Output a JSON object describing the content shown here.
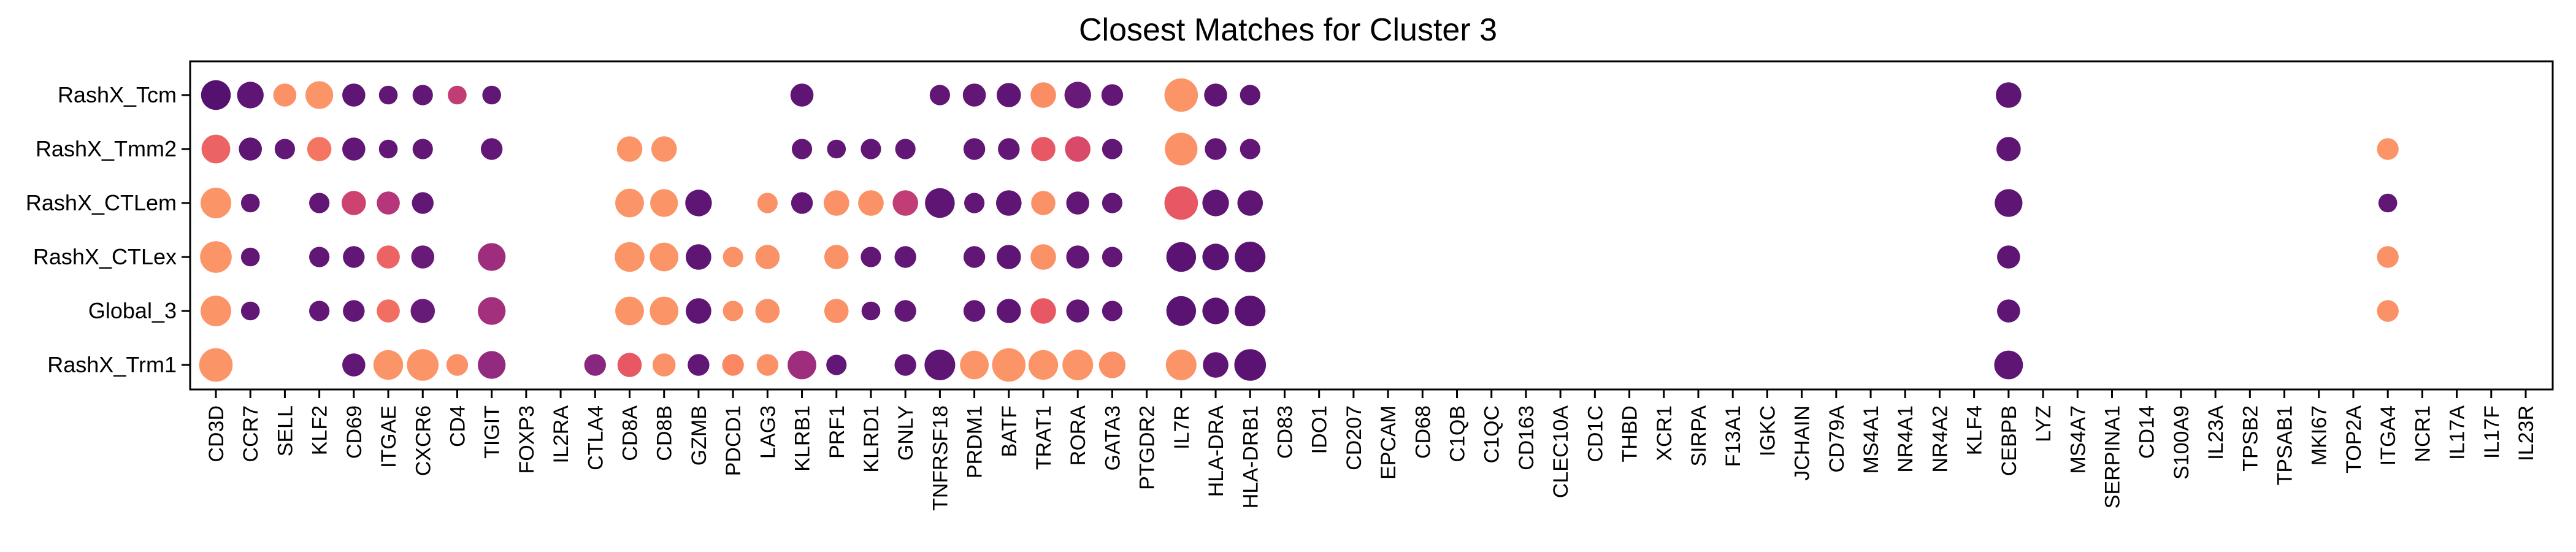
{
  "chart_data": {
    "type": "dot",
    "title": "Closest Matches for Cluster 3",
    "xlabel": "",
    "ylabel": "",
    "grid": false,
    "legend": "none",
    "rows": [
      "RashX_Tcm",
      "RashX_Tmm2",
      "RashX_CTLem",
      "RashX_CTLex",
      "Global_3",
      "RashX_Trm1"
    ],
    "genes": [
      "CD3D",
      "CCR7",
      "SELL",
      "KLF2",
      "CD69",
      "ITGAE",
      "CXCR6",
      "CD4",
      "TIGIT",
      "FOXP3",
      "IL2RA",
      "CTLA4",
      "CD8A",
      "CD8B",
      "GZMB",
      "PDCD1",
      "LAG3",
      "KLRB1",
      "PRF1",
      "KLRD1",
      "GNLY",
      "TNFRSF18",
      "PRDM1",
      "BATF",
      "TRAT1",
      "RORA",
      "GATA3",
      "PTGDR2",
      "IL7R",
      "HLA-DRA",
      "HLA-DRB1",
      "CD83",
      "IDO1",
      "CD207",
      "EPCAM",
      "CD68",
      "C1QB",
      "C1QC",
      "CD163",
      "CLEC10A",
      "CD1C",
      "THBD",
      "XCR1",
      "SIRPA",
      "F13A1",
      "IGKC",
      "JCHAIN",
      "CD79A",
      "MS4A1",
      "NR4A1",
      "NR4A2",
      "KLF4",
      "CEBPB",
      "LYZ",
      "MS4A7",
      "SERPINA1",
      "CD14",
      "S100A9",
      "IL23A",
      "TPSB2",
      "TPSAB1",
      "MKI67",
      "TOP2A",
      "ITGA4",
      "NCR1",
      "IL17A",
      "IL17F",
      "IL23R"
    ],
    "size_scale": "relative dot size 0-1",
    "color_scale": "0 = dark purple, 1 = light orange",
    "points": [
      {
        "row": "RashX_Tcm",
        "gene": "CD3D",
        "size": 0.75,
        "color": 0.05
      },
      {
        "row": "RashX_Tcm",
        "gene": "CCR7",
        "size": 0.6,
        "color": 0.1
      },
      {
        "row": "RashX_Tcm",
        "gene": "SELL",
        "size": 0.45,
        "color": 0.9
      },
      {
        "row": "RashX_Tcm",
        "gene": "KLF2",
        "size": 0.65,
        "color": 0.92
      },
      {
        "row": "RashX_Tcm",
        "gene": "CD69",
        "size": 0.45,
        "color": 0.1
      },
      {
        "row": "RashX_Tcm",
        "gene": "ITGAE",
        "size": 0.3,
        "color": 0.12
      },
      {
        "row": "RashX_Tcm",
        "gene": "CXCR6",
        "size": 0.35,
        "color": 0.12
      },
      {
        "row": "RashX_Tcm",
        "gene": "CD4",
        "size": 0.3,
        "color": 0.55
      },
      {
        "row": "RashX_Tcm",
        "gene": "TIGIT",
        "size": 0.3,
        "color": 0.12
      },
      {
        "row": "RashX_Tcm",
        "gene": "KLRB1",
        "size": 0.45,
        "color": 0.1
      },
      {
        "row": "RashX_Tcm",
        "gene": "TNFRSF18",
        "size": 0.35,
        "color": 0.12
      },
      {
        "row": "RashX_Tcm",
        "gene": "PRDM1",
        "size": 0.45,
        "color": 0.12
      },
      {
        "row": "RashX_Tcm",
        "gene": "BATF",
        "size": 0.5,
        "color": 0.1
      },
      {
        "row": "RashX_Tcm",
        "gene": "TRAT1",
        "size": 0.55,
        "color": 0.88
      },
      {
        "row": "RashX_Tcm",
        "gene": "RORA",
        "size": 0.6,
        "color": 0.15
      },
      {
        "row": "RashX_Tcm",
        "gene": "GATA3",
        "size": 0.4,
        "color": 0.12
      },
      {
        "row": "RashX_Tcm",
        "gene": "IL7R",
        "size": 0.95,
        "color": 0.92
      },
      {
        "row": "RashX_Tcm",
        "gene": "HLA-DRA",
        "size": 0.45,
        "color": 0.1
      },
      {
        "row": "RashX_Tcm",
        "gene": "HLA-DRB1",
        "size": 0.35,
        "color": 0.1
      },
      {
        "row": "RashX_Tcm",
        "gene": "CEBPB",
        "size": 0.55,
        "color": 0.1
      },
      {
        "row": "RashX_Tmm2",
        "gene": "CD3D",
        "size": 0.7,
        "color": 0.75
      },
      {
        "row": "RashX_Tmm2",
        "gene": "CCR7",
        "size": 0.45,
        "color": 0.1
      },
      {
        "row": "RashX_Tmm2",
        "gene": "SELL",
        "size": 0.35,
        "color": 0.12
      },
      {
        "row": "RashX_Tmm2",
        "gene": "KLF2",
        "size": 0.5,
        "color": 0.8
      },
      {
        "row": "RashX_Tmm2",
        "gene": "CD69",
        "size": 0.45,
        "color": 0.12
      },
      {
        "row": "RashX_Tmm2",
        "gene": "ITGAE",
        "size": 0.3,
        "color": 0.12
      },
      {
        "row": "RashX_Tmm2",
        "gene": "CXCR6",
        "size": 0.35,
        "color": 0.12
      },
      {
        "row": "RashX_Tmm2",
        "gene": "TIGIT",
        "size": 0.4,
        "color": 0.12
      },
      {
        "row": "RashX_Tmm2",
        "gene": "CD8A",
        "size": 0.55,
        "color": 0.92
      },
      {
        "row": "RashX_Tmm2",
        "gene": "CD8B",
        "size": 0.55,
        "color": 0.92
      },
      {
        "row": "RashX_Tmm2",
        "gene": "KLRB1",
        "size": 0.35,
        "color": 0.12
      },
      {
        "row": "RashX_Tmm2",
        "gene": "PRF1",
        "size": 0.3,
        "color": 0.12
      },
      {
        "row": "RashX_Tmm2",
        "gene": "KLRD1",
        "size": 0.35,
        "color": 0.12
      },
      {
        "row": "RashX_Tmm2",
        "gene": "GNLY",
        "size": 0.35,
        "color": 0.12
      },
      {
        "row": "RashX_Tmm2",
        "gene": "PRDM1",
        "size": 0.4,
        "color": 0.12
      },
      {
        "row": "RashX_Tmm2",
        "gene": "BATF",
        "size": 0.4,
        "color": 0.12
      },
      {
        "row": "RashX_Tmm2",
        "gene": "TRAT1",
        "size": 0.5,
        "color": 0.72
      },
      {
        "row": "RashX_Tmm2",
        "gene": "RORA",
        "size": 0.55,
        "color": 0.65
      },
      {
        "row": "RashX_Tmm2",
        "gene": "GATA3",
        "size": 0.35,
        "color": 0.12
      },
      {
        "row": "RashX_Tmm2",
        "gene": "IL7R",
        "size": 0.9,
        "color": 0.9
      },
      {
        "row": "RashX_Tmm2",
        "gene": "HLA-DRA",
        "size": 0.4,
        "color": 0.12
      },
      {
        "row": "RashX_Tmm2",
        "gene": "HLA-DRB1",
        "size": 0.35,
        "color": 0.12
      },
      {
        "row": "RashX_Tmm2",
        "gene": "CEBPB",
        "size": 0.5,
        "color": 0.1
      },
      {
        "row": "RashX_Tmm2",
        "gene": "ITGA4",
        "size": 0.4,
        "color": 0.92
      },
      {
        "row": "RashX_CTLem",
        "gene": "CD3D",
        "size": 0.8,
        "color": 0.92
      },
      {
        "row": "RashX_CTLem",
        "gene": "CCR7",
        "size": 0.3,
        "color": 0.12
      },
      {
        "row": "RashX_CTLem",
        "gene": "KLF2",
        "size": 0.35,
        "color": 0.12
      },
      {
        "row": "RashX_CTLem",
        "gene": "CD69",
        "size": 0.5,
        "color": 0.6
      },
      {
        "row": "RashX_CTLem",
        "gene": "ITGAE",
        "size": 0.45,
        "color": 0.5
      },
      {
        "row": "RashX_CTLem",
        "gene": "CXCR6",
        "size": 0.4,
        "color": 0.12
      },
      {
        "row": "RashX_CTLem",
        "gene": "CD8A",
        "size": 0.7,
        "color": 0.92
      },
      {
        "row": "RashX_CTLem",
        "gene": "CD8B",
        "size": 0.65,
        "color": 0.92
      },
      {
        "row": "RashX_CTLem",
        "gene": "GZMB",
        "size": 0.6,
        "color": 0.1
      },
      {
        "row": "RashX_CTLem",
        "gene": "LAG3",
        "size": 0.35,
        "color": 0.9
      },
      {
        "row": "RashX_CTLem",
        "gene": "KLRB1",
        "size": 0.4,
        "color": 0.12
      },
      {
        "row": "RashX_CTLem",
        "gene": "PRF1",
        "size": 0.55,
        "color": 0.9
      },
      {
        "row": "RashX_CTLem",
        "gene": "KLRD1",
        "size": 0.55,
        "color": 0.9
      },
      {
        "row": "RashX_CTLem",
        "gene": "GNLY",
        "size": 0.55,
        "color": 0.55
      },
      {
        "row": "RashX_CTLem",
        "gene": "TNFRSF18",
        "size": 0.75,
        "color": 0.1
      },
      {
        "row": "RashX_CTLem",
        "gene": "PRDM1",
        "size": 0.35,
        "color": 0.12
      },
      {
        "row": "RashX_CTLem",
        "gene": "BATF",
        "size": 0.55,
        "color": 0.1
      },
      {
        "row": "RashX_CTLem",
        "gene": "TRAT1",
        "size": 0.5,
        "color": 0.9
      },
      {
        "row": "RashX_CTLem",
        "gene": "RORA",
        "size": 0.45,
        "color": 0.12
      },
      {
        "row": "RashX_CTLem",
        "gene": "GATA3",
        "size": 0.35,
        "color": 0.12
      },
      {
        "row": "RashX_CTLem",
        "gene": "IL7R",
        "size": 0.95,
        "color": 0.72
      },
      {
        "row": "RashX_CTLem",
        "gene": "HLA-DRA",
        "size": 0.6,
        "color": 0.1
      },
      {
        "row": "RashX_CTLem",
        "gene": "HLA-DRB1",
        "size": 0.55,
        "color": 0.1
      },
      {
        "row": "RashX_CTLem",
        "gene": "CEBPB",
        "size": 0.65,
        "color": 0.1
      },
      {
        "row": "RashX_CTLem",
        "gene": "ITGA4",
        "size": 0.3,
        "color": 0.12
      },
      {
        "row": "RashX_CTLex",
        "gene": "CD3D",
        "size": 0.85,
        "color": 0.92
      },
      {
        "row": "RashX_CTLex",
        "gene": "CCR7",
        "size": 0.3,
        "color": 0.12
      },
      {
        "row": "RashX_CTLex",
        "gene": "CD69",
        "size": 0.4,
        "color": 0.12
      },
      {
        "row": "RashX_CTLex",
        "gene": "KLF2",
        "size": 0.35,
        "color": 0.12
      },
      {
        "row": "RashX_CTLex",
        "gene": "ITGAE",
        "size": 0.45,
        "color": 0.75
      },
      {
        "row": "RashX_CTLex",
        "gene": "CXCR6",
        "size": 0.45,
        "color": 0.15
      },
      {
        "row": "RashX_CTLex",
        "gene": "TIGIT",
        "size": 0.65,
        "color": 0.4
      },
      {
        "row": "RashX_CTLex",
        "gene": "CD8A",
        "size": 0.75,
        "color": 0.92
      },
      {
        "row": "RashX_CTLex",
        "gene": "CD8B",
        "size": 0.7,
        "color": 0.92
      },
      {
        "row": "RashX_CTLex",
        "gene": "GZMB",
        "size": 0.55,
        "color": 0.1
      },
      {
        "row": "RashX_CTLex",
        "gene": "PDCD1",
        "size": 0.35,
        "color": 0.9
      },
      {
        "row": "RashX_CTLex",
        "gene": "LAG3",
        "size": 0.5,
        "color": 0.9
      },
      {
        "row": "RashX_CTLex",
        "gene": "PRF1",
        "size": 0.5,
        "color": 0.9
      },
      {
        "row": "RashX_CTLex",
        "gene": "KLRD1",
        "size": 0.35,
        "color": 0.12
      },
      {
        "row": "RashX_CTLex",
        "gene": "GNLY",
        "size": 0.4,
        "color": 0.12
      },
      {
        "row": "RashX_CTLex",
        "gene": "PRDM1",
        "size": 0.4,
        "color": 0.12
      },
      {
        "row": "RashX_CTLex",
        "gene": "BATF",
        "size": 0.5,
        "color": 0.1
      },
      {
        "row": "RashX_CTLex",
        "gene": "TRAT1",
        "size": 0.55,
        "color": 0.9
      },
      {
        "row": "RashX_CTLex",
        "gene": "RORA",
        "size": 0.45,
        "color": 0.12
      },
      {
        "row": "RashX_CTLex",
        "gene": "GATA3",
        "size": 0.35,
        "color": 0.12
      },
      {
        "row": "RashX_CTLex",
        "gene": "IL7R",
        "size": 0.75,
        "color": 0.08
      },
      {
        "row": "RashX_CTLex",
        "gene": "HLA-DRA",
        "size": 0.6,
        "color": 0.08
      },
      {
        "row": "RashX_CTLex",
        "gene": "HLA-DRB1",
        "size": 0.8,
        "color": 0.08
      },
      {
        "row": "RashX_CTLex",
        "gene": "CEBPB",
        "size": 0.45,
        "color": 0.1
      },
      {
        "row": "RashX_CTLex",
        "gene": "ITGA4",
        "size": 0.4,
        "color": 0.9
      },
      {
        "row": "Global_3",
        "gene": "CD3D",
        "size": 0.8,
        "color": 0.92
      },
      {
        "row": "Global_3",
        "gene": "CCR7",
        "size": 0.3,
        "color": 0.12
      },
      {
        "row": "Global_3",
        "gene": "KLF2",
        "size": 0.35,
        "color": 0.12
      },
      {
        "row": "Global_3",
        "gene": "CD69",
        "size": 0.4,
        "color": 0.12
      },
      {
        "row": "Global_3",
        "gene": "ITGAE",
        "size": 0.45,
        "color": 0.78
      },
      {
        "row": "Global_3",
        "gene": "CXCR6",
        "size": 0.5,
        "color": 0.15
      },
      {
        "row": "Global_3",
        "gene": "TIGIT",
        "size": 0.65,
        "color": 0.42
      },
      {
        "row": "Global_3",
        "gene": "CD8A",
        "size": 0.7,
        "color": 0.92
      },
      {
        "row": "Global_3",
        "gene": "CD8B",
        "size": 0.7,
        "color": 0.92
      },
      {
        "row": "Global_3",
        "gene": "GZMB",
        "size": 0.55,
        "color": 0.1
      },
      {
        "row": "Global_3",
        "gene": "PDCD1",
        "size": 0.35,
        "color": 0.9
      },
      {
        "row": "Global_3",
        "gene": "LAG3",
        "size": 0.5,
        "color": 0.9
      },
      {
        "row": "Global_3",
        "gene": "PRF1",
        "size": 0.5,
        "color": 0.9
      },
      {
        "row": "Global_3",
        "gene": "KLRD1",
        "size": 0.3,
        "color": 0.12
      },
      {
        "row": "Global_3",
        "gene": "GNLY",
        "size": 0.4,
        "color": 0.12
      },
      {
        "row": "Global_3",
        "gene": "PRDM1",
        "size": 0.4,
        "color": 0.12
      },
      {
        "row": "Global_3",
        "gene": "BATF",
        "size": 0.5,
        "color": 0.1
      },
      {
        "row": "Global_3",
        "gene": "TRAT1",
        "size": 0.55,
        "color": 0.72
      },
      {
        "row": "Global_3",
        "gene": "RORA",
        "size": 0.45,
        "color": 0.12
      },
      {
        "row": "Global_3",
        "gene": "GATA3",
        "size": 0.35,
        "color": 0.12
      },
      {
        "row": "Global_3",
        "gene": "IL7R",
        "size": 0.75,
        "color": 0.08
      },
      {
        "row": "Global_3",
        "gene": "HLA-DRA",
        "size": 0.6,
        "color": 0.08
      },
      {
        "row": "Global_3",
        "gene": "HLA-DRB1",
        "size": 0.8,
        "color": 0.08
      },
      {
        "row": "Global_3",
        "gene": "CEBPB",
        "size": 0.45,
        "color": 0.1
      },
      {
        "row": "Global_3",
        "gene": "ITGA4",
        "size": 0.4,
        "color": 0.9
      },
      {
        "row": "RashX_Trm1",
        "gene": "CD3D",
        "size": 0.95,
        "color": 0.92
      },
      {
        "row": "RashX_Trm1",
        "gene": "CD69",
        "size": 0.45,
        "color": 0.12
      },
      {
        "row": "RashX_Trm1",
        "gene": "ITGAE",
        "size": 0.75,
        "color": 0.92
      },
      {
        "row": "RashX_Trm1",
        "gene": "CXCR6",
        "size": 0.85,
        "color": 0.92
      },
      {
        "row": "RashX_Trm1",
        "gene": "CD4",
        "size": 0.4,
        "color": 0.9
      },
      {
        "row": "RashX_Trm1",
        "gene": "TIGIT",
        "size": 0.65,
        "color": 0.35
      },
      {
        "row": "RashX_Trm1",
        "gene": "CTLA4",
        "size": 0.4,
        "color": 0.3
      },
      {
        "row": "RashX_Trm1",
        "gene": "CD8A",
        "size": 0.5,
        "color": 0.72
      },
      {
        "row": "RashX_Trm1",
        "gene": "CD8B",
        "size": 0.45,
        "color": 0.9
      },
      {
        "row": "RashX_Trm1",
        "gene": "GZMB",
        "size": 0.4,
        "color": 0.12
      },
      {
        "row": "RashX_Trm1",
        "gene": "PDCD1",
        "size": 0.4,
        "color": 0.85
      },
      {
        "row": "RashX_Trm1",
        "gene": "LAG3",
        "size": 0.4,
        "color": 0.9
      },
      {
        "row": "RashX_Trm1",
        "gene": "KLRB1",
        "size": 0.7,
        "color": 0.4
      },
      {
        "row": "RashX_Trm1",
        "gene": "PRF1",
        "size": 0.35,
        "color": 0.12
      },
      {
        "row": "RashX_Trm1",
        "gene": "GNLY",
        "size": 0.4,
        "color": 0.12
      },
      {
        "row": "RashX_Trm1",
        "gene": "TNFRSF18",
        "size": 0.8,
        "color": 0.1
      },
      {
        "row": "RashX_Trm1",
        "gene": "PRDM1",
        "size": 0.7,
        "color": 0.92
      },
      {
        "row": "RashX_Trm1",
        "gene": "BATF",
        "size": 0.95,
        "color": 0.92
      },
      {
        "row": "RashX_Trm1",
        "gene": "TRAT1",
        "size": 0.75,
        "color": 0.92
      },
      {
        "row": "RashX_Trm1",
        "gene": "RORA",
        "size": 0.8,
        "color": 0.92
      },
      {
        "row": "RashX_Trm1",
        "gene": "GATA3",
        "size": 0.6,
        "color": 0.9
      },
      {
        "row": "RashX_Trm1",
        "gene": "IL7R",
        "size": 0.8,
        "color": 0.92
      },
      {
        "row": "RashX_Trm1",
        "gene": "HLA-DRA",
        "size": 0.55,
        "color": 0.1
      },
      {
        "row": "RashX_Trm1",
        "gene": "HLA-DRB1",
        "size": 0.85,
        "color": 0.08
      },
      {
        "row": "RashX_Trm1",
        "gene": "CEBPB",
        "size": 0.7,
        "color": 0.1
      }
    ]
  },
  "colors": {
    "low": "#4b0c6b",
    "mid_low": "#7b2382",
    "mid": "#b5367a",
    "mid_high": "#e55064",
    "high": "#fb8861",
    "top": "#fca36f"
  }
}
